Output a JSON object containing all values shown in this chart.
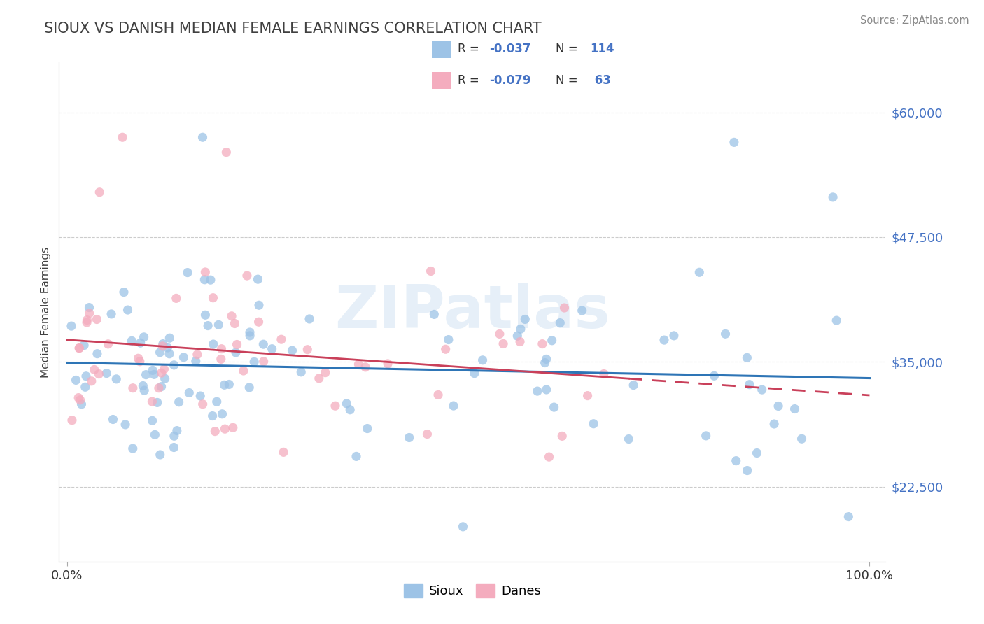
{
  "title": "SIOUX VS DANISH MEDIAN FEMALE EARNINGS CORRELATION CHART",
  "source": "Source: ZipAtlas.com",
  "ylabel": "Median Female Earnings",
  "yticks": [
    22500,
    35000,
    47500,
    60000
  ],
  "ytick_labels": [
    "$22,500",
    "$35,000",
    "$47,500",
    "$60,000"
  ],
  "ylim_min": 15000,
  "ylim_max": 65000,
  "xlim_min": -1,
  "xlim_max": 102,
  "xticks": [
    0,
    100
  ],
  "xtick_labels": [
    "0.0%",
    "100.0%"
  ],
  "sioux_color": "#9DC3E6",
  "danes_color": "#F4ACBE",
  "sioux_line_color": "#2E75B6",
  "danes_line_color": "#C9405A",
  "bg_color": "#FFFFFF",
  "grid_color": "#CCCCCC",
  "watermark_text": "ZIPatlas",
  "watermark_color": "#DDEEFF",
  "title_color": "#404040",
  "source_color": "#888888",
  "ylabel_color": "#404040",
  "sioux_r": "-0.037",
  "sioux_n": "114",
  "danes_r": "-0.079",
  "danes_n": "63",
  "legend_box_color": "#FFFFFF",
  "legend_border_color": "#CCCCCC",
  "legend_r_color": "#4472C4",
  "legend_text_color": "#333333"
}
